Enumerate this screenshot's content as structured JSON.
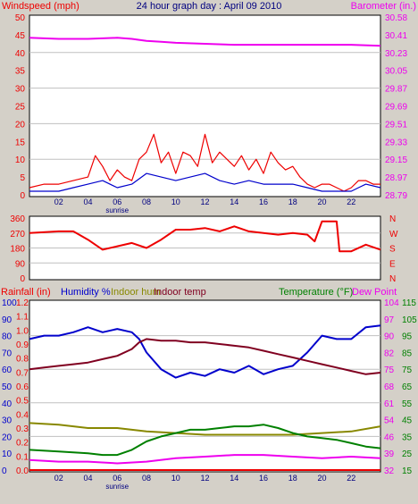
{
  "colors": {
    "background": "#d4d0c8",
    "plot_bg": "#ffffff",
    "wind_speed": "#ee0000",
    "wind_avg": "#0000cc",
    "barometer": "#ee00ee",
    "wind_dir": "#ee0000",
    "rainfall": "#ee0000",
    "humidity": "#0000cc",
    "indoor_hum": "#888800",
    "indoor_temp": "#800020",
    "temperature": "#008000",
    "dew_point": "#ee00ee",
    "title": "#000080"
  },
  "chart_data": [
    {
      "type": "line",
      "title": "24 hour graph day : April 09 2010",
      "left_label": "Windspeed (mph)",
      "right_label": "Barometer (in.)",
      "x_tick_labels": [
        "02",
        "04",
        "06",
        "08",
        "10",
        "12",
        "14",
        "16",
        "18",
        "20",
        "22"
      ],
      "x_range": [
        0,
        24
      ],
      "x_unit": "hours",
      "annotation": "sunrise",
      "left_axis": {
        "ticks": [
          "0",
          "5",
          "10",
          "15",
          "20",
          "25",
          "30",
          "35",
          "40",
          "45",
          "50"
        ],
        "ylim": [
          0,
          50
        ]
      },
      "right_axis": {
        "ticks": [
          "28.79",
          "28.97",
          "29.15",
          "29.33",
          "29.51",
          "29.69",
          "29.87",
          "30.05",
          "30.23",
          "30.41",
          "30.58"
        ],
        "ylim": [
          28.79,
          30.58
        ]
      },
      "series": [
        {
          "key": "barometer",
          "axis": "right",
          "x": [
            0,
            2,
            4,
            6,
            7,
            8,
            9,
            10,
            12,
            14,
            16,
            18,
            20,
            22,
            24
          ],
          "y": [
            30.37,
            30.36,
            30.36,
            30.37,
            30.36,
            30.34,
            30.33,
            30.32,
            30.31,
            30.3,
            30.3,
            30.3,
            30.3,
            30.3,
            30.29
          ]
        },
        {
          "key": "wind_speed",
          "axis": "left",
          "x": [
            0,
            1,
            2,
            3,
            4,
            4.5,
            5,
            5.5,
            6,
            6.5,
            7,
            7.5,
            8,
            8.5,
            9,
            9.5,
            10,
            10.5,
            11,
            11.5,
            12,
            12.5,
            13,
            13.5,
            14,
            14.5,
            15,
            15.5,
            16,
            16.5,
            17,
            17.5,
            18,
            18.5,
            19,
            19.5,
            20,
            20.5,
            21,
            21.5,
            22,
            22.5,
            23,
            23.5,
            24
          ],
          "y": [
            2,
            3,
            3,
            4,
            5,
            11,
            8,
            4,
            7,
            5,
            4,
            10,
            12,
            17,
            9,
            12,
            6,
            12,
            11,
            8,
            17,
            9,
            12,
            10,
            8,
            11,
            7,
            10,
            6,
            12,
            9,
            7,
            8,
            5,
            3,
            2,
            3,
            3,
            2,
            1,
            2,
            4,
            4,
            3,
            3
          ]
        },
        {
          "key": "wind_avg",
          "axis": "left",
          "x": [
            0,
            1,
            2,
            3,
            4,
            5,
            6,
            7,
            8,
            9,
            10,
            11,
            12,
            13,
            14,
            15,
            16,
            17,
            18,
            19,
            20,
            21,
            22,
            22.5,
            23,
            24
          ],
          "y": [
            1,
            1,
            1,
            2,
            3,
            4,
            2,
            3,
            6,
            5,
            4,
            5,
            6,
            4,
            3,
            4,
            3,
            3,
            3,
            2,
            1,
            1,
            1,
            2,
            3,
            2
          ]
        }
      ]
    },
    {
      "type": "line",
      "left_ticks": [
        "360",
        "270",
        "180",
        "90",
        "0"
      ],
      "right_labels": [
        "N",
        "W",
        "S",
        "E",
        "N"
      ],
      "ylim": [
        0,
        360
      ],
      "x_range": [
        0,
        24
      ],
      "series": [
        {
          "key": "wind_dir",
          "x": [
            0,
            2,
            3,
            4,
            5,
            6,
            7,
            8,
            9,
            10,
            11,
            12,
            13,
            14,
            15,
            16,
            17,
            18,
            19,
            19.5,
            20,
            21,
            21.2,
            22,
            23,
            24
          ],
          "y": [
            270,
            280,
            280,
            230,
            170,
            190,
            210,
            180,
            230,
            290,
            290,
            300,
            280,
            310,
            280,
            270,
            260,
            270,
            260,
            220,
            340,
            340,
            160,
            160,
            200,
            170
          ]
        }
      ]
    },
    {
      "type": "line",
      "left_label_parts": [
        {
          "key": "rainfall",
          "text": "Rainfall (in)"
        },
        {
          "key": "humidity",
          "text": "Humidity %"
        },
        {
          "key": "indoor_hum",
          "text": "Indoor hum"
        },
        {
          "key": "indoor_temp",
          "text": "Indoor temp"
        }
      ],
      "right_label_parts": [
        {
          "key": "temperature",
          "text": "Temperature (°F)"
        },
        {
          "key": "dew_point",
          "text": "Dew Point"
        }
      ],
      "annotation": "sunrise",
      "x_tick_labels": [
        "02",
        "04",
        "06",
        "08",
        "10",
        "12",
        "14",
        "16",
        "18",
        "20",
        "22"
      ],
      "x_range": [
        0,
        24
      ],
      "humidity_axis": {
        "ticks": [
          "0",
          "10",
          "20",
          "30",
          "40",
          "50",
          "60",
          "70",
          "80",
          "90",
          "100"
        ],
        "ylim": [
          0,
          100
        ]
      },
      "rain_axis": {
        "ticks": [
          "0.0",
          "0.1",
          "0.2",
          "0.3",
          "0.4",
          "0.5",
          "0.6",
          "0.7",
          "0.8",
          "0.9",
          "1.0",
          "1.1",
          "1.2"
        ],
        "ylim": [
          0,
          1.2
        ]
      },
      "temp_axis_inner": {
        "ticks": [
          "32",
          "39",
          "46",
          "54",
          "61",
          "68",
          "75",
          "82",
          "90",
          "97",
          "104"
        ],
        "ylim": [
          32,
          104
        ]
      },
      "temp_axis_outer": {
        "ticks": [
          "15",
          "25",
          "35",
          "45",
          "55",
          "65",
          "75",
          "85",
          "95",
          "105",
          "115"
        ],
        "ylim": [
          15,
          115
        ]
      },
      "series": [
        {
          "key": "humidity",
          "axis": "humidity",
          "x": [
            0,
            1,
            2,
            3,
            4,
            5,
            6,
            7,
            7.5,
            8,
            9,
            10,
            11,
            12,
            13,
            14,
            15,
            16,
            17,
            18,
            19,
            19.5,
            20,
            21,
            22,
            23,
            24
          ],
          "y": [
            78,
            80,
            80,
            82,
            85,
            82,
            84,
            82,
            78,
            70,
            60,
            55,
            58,
            56,
            60,
            58,
            62,
            57,
            60,
            62,
            70,
            75,
            80,
            78,
            78,
            85,
            86
          ]
        },
        {
          "key": "indoor_temp",
          "axis": "humidity",
          "x": [
            0,
            1,
            2,
            3,
            4,
            5,
            6,
            7,
            7.5,
            8,
            9,
            10,
            11,
            12,
            13,
            14,
            15,
            16,
            17,
            18,
            19,
            20,
            21,
            22,
            23,
            24
          ],
          "y": [
            60,
            61,
            62,
            63,
            64,
            66,
            68,
            72,
            76,
            78,
            77,
            77,
            76,
            76,
            75,
            74,
            73,
            71,
            69,
            67,
            65,
            63,
            61,
            59,
            57,
            58
          ]
        },
        {
          "key": "indoor_hum",
          "axis": "humidity",
          "x": [
            0,
            2,
            4,
            6,
            8,
            10,
            12,
            14,
            16,
            18,
            20,
            22,
            24
          ],
          "y": [
            28,
            27,
            25,
            25,
            23,
            22,
            21,
            21,
            21,
            21,
            22,
            23,
            26
          ]
        },
        {
          "key": "temperature",
          "axis": "humidity",
          "x": [
            0,
            2,
            4,
            5,
            6,
            7,
            8,
            9,
            10,
            11,
            12,
            13,
            14,
            15,
            16,
            17,
            18,
            19,
            20,
            21,
            22,
            23,
            24
          ],
          "y": [
            12,
            11,
            10,
            9,
            9,
            12,
            17,
            20,
            22,
            24,
            24,
            25,
            26,
            26,
            27,
            25,
            22,
            20,
            19,
            18,
            16,
            14,
            13
          ]
        },
        {
          "key": "dew_point",
          "axis": "humidity",
          "x": [
            0,
            2,
            4,
            6,
            8,
            10,
            12,
            14,
            16,
            18,
            20,
            22,
            24
          ],
          "y": [
            6,
            5,
            5,
            4,
            5,
            7,
            8,
            9,
            9,
            8,
            7,
            8,
            7
          ]
        },
        {
          "key": "rainfall",
          "axis": "humidity",
          "x": [
            0,
            24
          ],
          "y": [
            0,
            0
          ]
        }
      ]
    }
  ]
}
